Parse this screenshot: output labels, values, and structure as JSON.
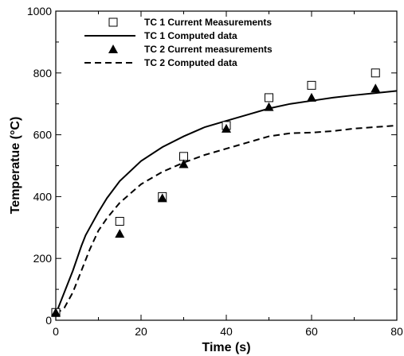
{
  "chart_data": {
    "type": "scatter",
    "title": "",
    "xlabel": "Time (s)",
    "ylabel": "Temperatue (°C)",
    "xlim": [
      0,
      80
    ],
    "ylim": [
      0,
      1000
    ],
    "xticks": [
      "0",
      "20",
      "40",
      "60",
      "80"
    ],
    "yticks": [
      "0",
      "200",
      "400",
      "600",
      "800",
      "1000"
    ],
    "grid": false,
    "legend_position": "top-left",
    "series": [
      {
        "name": "TC 1 Current Measurements",
        "kind": "marker",
        "marker": "open-square",
        "x": [
          0,
          15,
          25,
          30,
          40,
          50,
          60,
          75
        ],
        "y": [
          25,
          320,
          400,
          530,
          630,
          720,
          760,
          800
        ]
      },
      {
        "name": "TC 1 Computed data",
        "kind": "line",
        "style": "solid",
        "x": [
          0,
          2,
          4,
          6,
          7,
          8,
          10,
          12,
          15,
          20,
          25,
          30,
          35,
          40,
          45,
          50,
          55,
          60,
          65,
          70,
          75,
          80
        ],
        "y": [
          20,
          90,
          160,
          240,
          275,
          300,
          350,
          395,
          450,
          515,
          560,
          595,
          625,
          645,
          665,
          685,
          700,
          710,
          720,
          728,
          735,
          742
        ]
      },
      {
        "name": "TC 2 Current measurements",
        "kind": "marker",
        "marker": "filled-triangle",
        "x": [
          0,
          15,
          25,
          30,
          40,
          50,
          60,
          75
        ],
        "y": [
          25,
          280,
          395,
          505,
          620,
          690,
          720,
          750
        ]
      },
      {
        "name": "TC 2 Computed data",
        "kind": "line",
        "style": "dashed",
        "x": [
          0,
          2,
          4,
          6,
          8,
          10,
          12,
          15,
          20,
          25,
          30,
          35,
          40,
          45,
          50,
          55,
          60,
          65,
          70,
          75,
          80
        ],
        "y": [
          20,
          40,
          90,
          160,
          230,
          290,
          330,
          380,
          440,
          480,
          510,
          535,
          555,
          575,
          595,
          605,
          607,
          612,
          620,
          625,
          630
        ]
      }
    ]
  }
}
